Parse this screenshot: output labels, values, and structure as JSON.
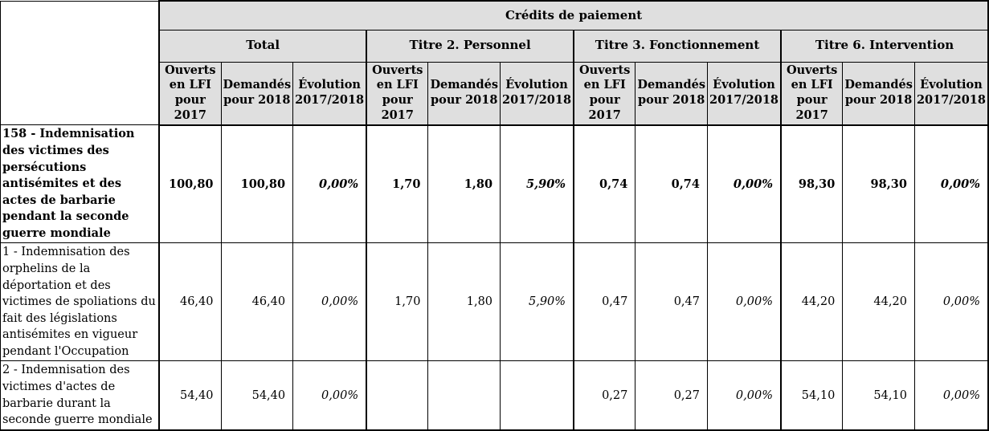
{
  "table": {
    "top_header": "Crédits de paiement",
    "groups": [
      {
        "label": "Total"
      },
      {
        "label": "Titre 2. Personnel"
      },
      {
        "label": "Titre 3. Fonctionnement"
      },
      {
        "label": "Titre 6. Intervention"
      }
    ],
    "sub_headers": [
      "Ouverts en LFI pour 2017",
      "Demandés pour 2018",
      "Évolution 2017/2018"
    ],
    "rows": [
      {
        "label": "158 - Indemnisation des victimes des persécutions antisémites et des actes de barbarie pendant la seconde guerre mondiale",
        "values": [
          "100,80",
          "100,80",
          "0,00%",
          "1,70",
          "1,80",
          "5,90%",
          "0,74",
          "0,74",
          "0,00%",
          "98,30",
          "98,30",
          "0,00%"
        ]
      },
      {
        "label": "1 - Indemnisation des orphelins de la déportation et des victimes de spoliations du fait des législations antisémites en vigueur pendant l'Occupation",
        "values": [
          "46,40",
          "46,40",
          "0,00%",
          "1,70",
          "1,80",
          "5,90%",
          "0,47",
          "0,47",
          "0,00%",
          "44,20",
          "44,20",
          "0,00%"
        ]
      },
      {
        "label": "2 - Indemnisation des victimes d'actes de barbarie durant la seconde guerre mondiale",
        "values": [
          "54,40",
          "54,40",
          "0,00%",
          "",
          "",
          "",
          "0,27",
          "0,27",
          "0,00%",
          "54,10",
          "54,10",
          "0,00%"
        ]
      }
    ]
  },
  "colors": {
    "header_bg": "#dfdfdf",
    "border": "#000000",
    "text": "#000000"
  }
}
